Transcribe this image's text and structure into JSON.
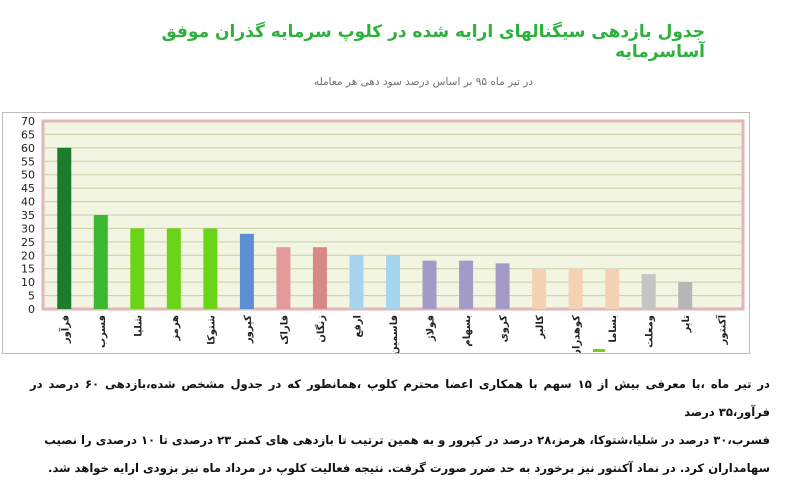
{
  "title": "جدول بازدهی سیگنالهای ارایه شده در کلوپ سرمایه گذران موفق آساسرمایه",
  "subtitle": "در تیر ماه ۹۵  بر اساس درصد سود دهی هر معامله",
  "colors": {
    "title": "#2db03c",
    "plot_background": "#f1f5e1",
    "plot_border": "#e3b6b6",
    "grid": "#c9cfa6"
  },
  "chart_data": {
    "type": "bar",
    "ylim": [
      0,
      70
    ],
    "yticks": [
      0,
      5,
      10,
      15,
      20,
      25,
      30,
      35,
      40,
      45,
      50,
      55,
      60,
      65,
      70
    ],
    "grid": true,
    "categories": [
      "فرآور",
      "فسرب",
      "شلیا",
      "هرمز",
      "شتوکا",
      "کپرور",
      "فاراک",
      "زنگان",
      "ارفع",
      "فاسمین",
      "فولاژ",
      "بسهام",
      "کروی",
      "کالبر",
      "کوهدران",
      "بساما",
      "ومعلت",
      "تاپر",
      "آکنتور"
    ],
    "values": [
      60,
      35,
      30,
      30,
      30,
      28,
      23,
      23,
      20,
      20,
      18,
      18,
      17,
      15,
      15,
      15,
      13,
      10,
      0
    ],
    "bar_colors": [
      "#1c7d2c",
      "#3cb830",
      "#6ad417",
      "#6ad417",
      "#6ad417",
      "#5b8fd1",
      "#e39a9a",
      "#d98888",
      "#a7d4ee",
      "#a7d4ee",
      "#a49ac8",
      "#a49ac8",
      "#a49ac8",
      "#f6d2b4",
      "#f6d2b4",
      "#f6d2b4",
      "#c5c5c5",
      "#b6b6b6",
      "#b6b6b6"
    ]
  },
  "footer": {
    "line1": "در تیر ماه ،با معرفی بیش از ۱۵ سهم با همکاری اعضا محترم کلوپ ،همانطور که در جدول مشخص شده،بازدهی ۶۰ درصد در فرآور،۳۵ درصد",
    "line2": "فسرب،۳۰ درصد در شلیا،شتوکا، هرمز،۲۸ درصد در کپرور و به همین ترتیب تا بازدهی های کمتر ۲۳ درصدی تا ۱۰ درصدی را نصیب",
    "line3": "سهامداران کرد. در نماد آکنتور نیز برخورد به حد ضرر صورت گرفت. نتیجه فعالیت کلوپ در مرداد ماه نیز بزودی ارایه خواهد شد."
  }
}
